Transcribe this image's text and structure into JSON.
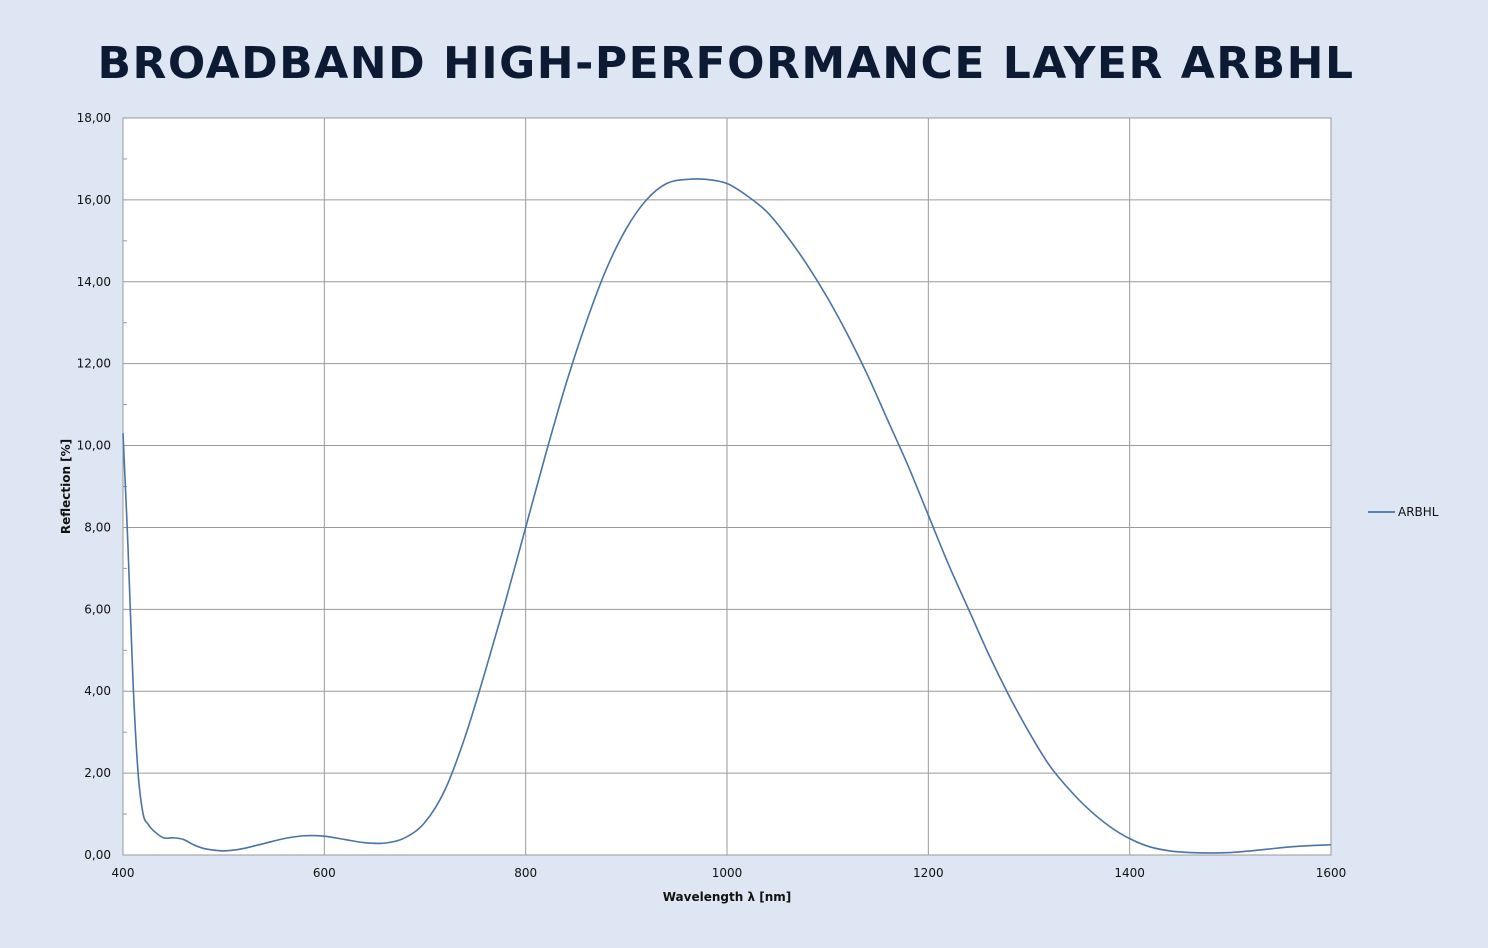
{
  "title": "BROADBAND HIGH-PERFORMANCE LAYER ARBHL",
  "colors": {
    "background": "#dde6f2",
    "plot_background": "#ffffff",
    "grid": "#9a9a9a",
    "series": "#4a73a6",
    "title": "#0d1a33"
  },
  "chart_data": {
    "type": "line",
    "title": "BROADBAND HIGH-PERFORMANCE LAYER ARBHL",
    "xlabel": "Wavelength λ [nm]",
    "ylabel": "Reflection [%]",
    "xlim": [
      400,
      1600
    ],
    "ylim": [
      0,
      18
    ],
    "x_ticks": [
      400,
      600,
      800,
      1000,
      1200,
      1400,
      1600
    ],
    "x_tick_labels": [
      "400",
      "600",
      "800",
      "1000",
      "1200",
      "1400",
      "1600"
    ],
    "y_ticks": [
      0,
      2,
      4,
      6,
      8,
      10,
      12,
      14,
      16,
      18
    ],
    "y_tick_labels": [
      "0,00",
      "2,00",
      "4,00",
      "6,00",
      "8,00",
      "10,00",
      "12,00",
      "14,00",
      "16,00",
      "18,00"
    ],
    "grid": true,
    "legend_position": "right",
    "series": [
      {
        "name": "ARBHL",
        "x": [
          400,
          405,
          410,
          415,
          420,
          425,
          430,
          440,
          450,
          460,
          470,
          480,
          490,
          500,
          510,
          520,
          540,
          560,
          580,
          600,
          620,
          640,
          660,
          680,
          700,
          720,
          740,
          760,
          780,
          800,
          820,
          840,
          860,
          880,
          900,
          920,
          940,
          960,
          980,
          1000,
          1020,
          1040,
          1060,
          1080,
          1100,
          1120,
          1140,
          1160,
          1180,
          1200,
          1220,
          1240,
          1260,
          1280,
          1300,
          1320,
          1340,
          1360,
          1380,
          1400,
          1420,
          1440,
          1460,
          1480,
          1500,
          1520,
          1540,
          1560,
          1580,
          1600
        ],
        "y": [
          10.3,
          7.5,
          4.2,
          2.0,
          1.0,
          0.75,
          0.6,
          0.42,
          0.42,
          0.38,
          0.25,
          0.16,
          0.12,
          0.1,
          0.12,
          0.16,
          0.28,
          0.4,
          0.47,
          0.46,
          0.38,
          0.3,
          0.29,
          0.42,
          0.8,
          1.6,
          2.9,
          4.5,
          6.2,
          8.0,
          9.8,
          11.5,
          13.0,
          14.3,
          15.3,
          16.0,
          16.4,
          16.5,
          16.5,
          16.4,
          16.1,
          15.7,
          15.1,
          14.4,
          13.6,
          12.7,
          11.7,
          10.6,
          9.5,
          8.3,
          7.1,
          6.0,
          4.9,
          3.9,
          3.0,
          2.2,
          1.6,
          1.1,
          0.7,
          0.4,
          0.2,
          0.1,
          0.06,
          0.05,
          0.06,
          0.1,
          0.15,
          0.2,
          0.23,
          0.25
        ]
      }
    ]
  }
}
